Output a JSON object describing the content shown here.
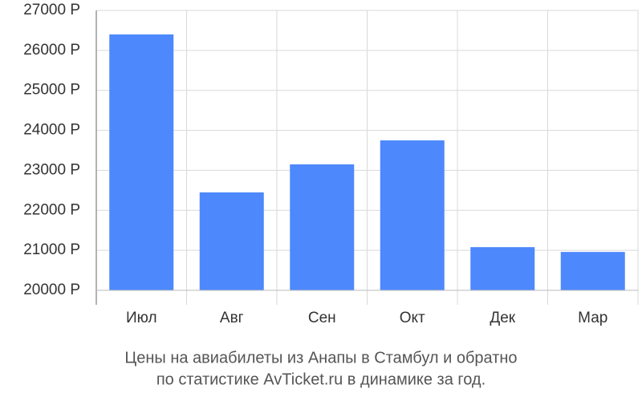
{
  "chart_data": {
    "type": "bar",
    "title_lines": [
      "Цены на авиабилеты из Анапы в Стамбул и обратно",
      "по статистике AvTicket.ru в динамике за год."
    ],
    "categories": [
      "Июл",
      "Авг",
      "Сен",
      "Окт",
      "Дек",
      "Мар"
    ],
    "values": [
      26400,
      22450,
      23150,
      23750,
      21080,
      20960
    ],
    "color": "#4d88fc",
    "ylim": [
      20000,
      27000
    ],
    "yticks": [
      {
        "value": 20000,
        "label": "20000 Р"
      },
      {
        "value": 21000,
        "label": "21000 Р"
      },
      {
        "value": 22000,
        "label": "22000 Р"
      },
      {
        "value": 23000,
        "label": "23000 Р"
      },
      {
        "value": 24000,
        "label": "24000 Р"
      },
      {
        "value": 25000,
        "label": "25000 Р"
      },
      {
        "value": 26000,
        "label": "26000 Р"
      },
      {
        "value": 27000,
        "label": "27000 Р"
      }
    ],
    "grid": true
  }
}
